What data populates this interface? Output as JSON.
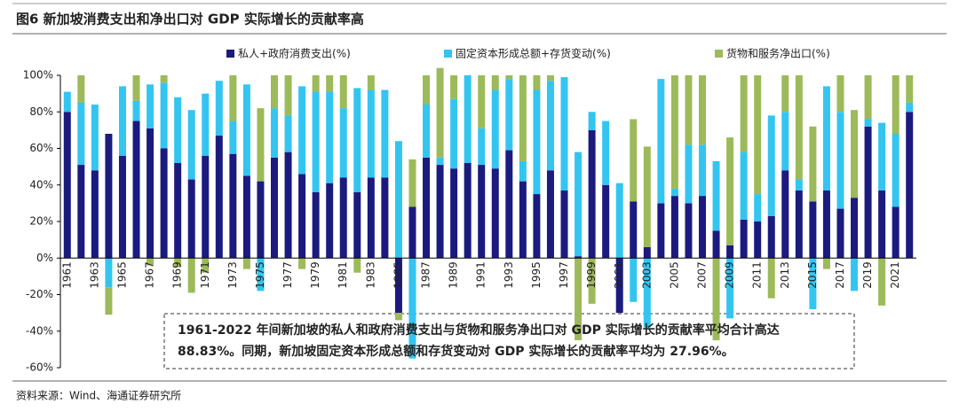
{
  "chart_data": {
    "type": "stacked_bar",
    "title": "图6  新加坡消费支出和净出口对 GDP 实际增长的贡献率高",
    "categories": [
      "1961",
      null,
      "1963",
      null,
      "1965",
      null,
      "1967",
      null,
      "1969",
      null,
      "1971",
      null,
      "1973",
      null,
      "1975",
      null,
      "1977",
      null,
      "1979",
      null,
      "1981",
      null,
      "1983",
      null,
      "1985",
      null,
      "1987",
      null,
      "1989",
      null,
      "1991",
      null,
      "1993",
      null,
      "1995",
      null,
      "1997",
      null,
      "1999",
      null,
      "2001",
      null,
      "2003",
      null,
      "2005",
      null,
      "2007",
      null,
      "2009",
      null,
      "2011",
      null,
      "2013",
      null,
      "2015",
      null,
      "2017",
      null,
      "2019",
      null,
      "2021",
      null
    ],
    "series": [
      {
        "name": "私人+政府消费支出(%)",
        "color": "#1b1a7e",
        "values": [
          80,
          51,
          48,
          68,
          56,
          75,
          71,
          60,
          52,
          43,
          56,
          67,
          57,
          45,
          42,
          55,
          58,
          46,
          36,
          41,
          44,
          36,
          44,
          44,
          -30,
          28,
          55,
          51,
          49,
          52,
          51,
          49,
          59,
          42,
          35,
          48,
          37,
          1,
          70,
          40,
          -30,
          31,
          6,
          30,
          34,
          30,
          34,
          15,
          7,
          21,
          20,
          23,
          48,
          37,
          31,
          37,
          27,
          33,
          72,
          37,
          28,
          80
        ]
      },
      {
        "name": "固定资本形成总额+存货变动(%)",
        "color": "#33c5f0",
        "values": [
          11,
          34,
          36,
          -16,
          38,
          11,
          24,
          36,
          36,
          38,
          34,
          30,
          18,
          50,
          -18,
          27,
          20,
          48,
          55,
          50,
          38,
          57,
          48,
          48,
          64,
          -55,
          29,
          4,
          38,
          48,
          20,
          43,
          39,
          11,
          57,
          49,
          62,
          57,
          10,
          35,
          41,
          -24,
          -38,
          68,
          4,
          32,
          28,
          38,
          -33,
          37,
          15,
          55,
          32,
          6,
          -28,
          57,
          53,
          -18,
          4,
          37,
          40,
          5
        ]
      },
      {
        "name": "货物和服务净出口(%)",
        "color": "#9cba5a",
        "values": [
          0,
          15,
          0,
          -15,
          0,
          14,
          -4,
          4,
          -5,
          -19,
          -8,
          0,
          25,
          -6,
          40,
          18,
          22,
          -6,
          9,
          9,
          18,
          -8,
          8,
          0,
          -4,
          26,
          16,
          49,
          13,
          0,
          29,
          8,
          2,
          47,
          8,
          3,
          0,
          -45,
          -25,
          0,
          0,
          45,
          55,
          0,
          62,
          38,
          38,
          -45,
          59,
          42,
          65,
          -22,
          20,
          57,
          41,
          -6,
          20,
          48,
          24,
          -26,
          32,
          15
        ]
      }
    ],
    "ylim": [
      -60,
      100
    ],
    "yticks": [
      {
        "value": -60,
        "label": "-60%"
      },
      {
        "value": -40,
        "label": "-40%"
      },
      {
        "value": -20,
        "label": "-20%"
      },
      {
        "value": 0,
        "label": "0%"
      },
      {
        "value": 20,
        "label": "20%"
      },
      {
        "value": 40,
        "label": "40%"
      },
      {
        "value": 60,
        "label": "60%"
      },
      {
        "value": 80,
        "label": "80%"
      },
      {
        "value": 100,
        "label": "100%"
      }
    ],
    "legend": "top",
    "annotation": [
      "1961-2022 年间新加坡的私人和政府消费支出与货物和服务净出口对 GDP 实际增长的贡献率平均合计高达",
      "88.83%。同期，新加坡固定资本形成总额和存货变动对 GDP 实际增长的贡献率平均为 27.96%。"
    ],
    "source": "资料来源：Wind、海通证券研究所"
  }
}
